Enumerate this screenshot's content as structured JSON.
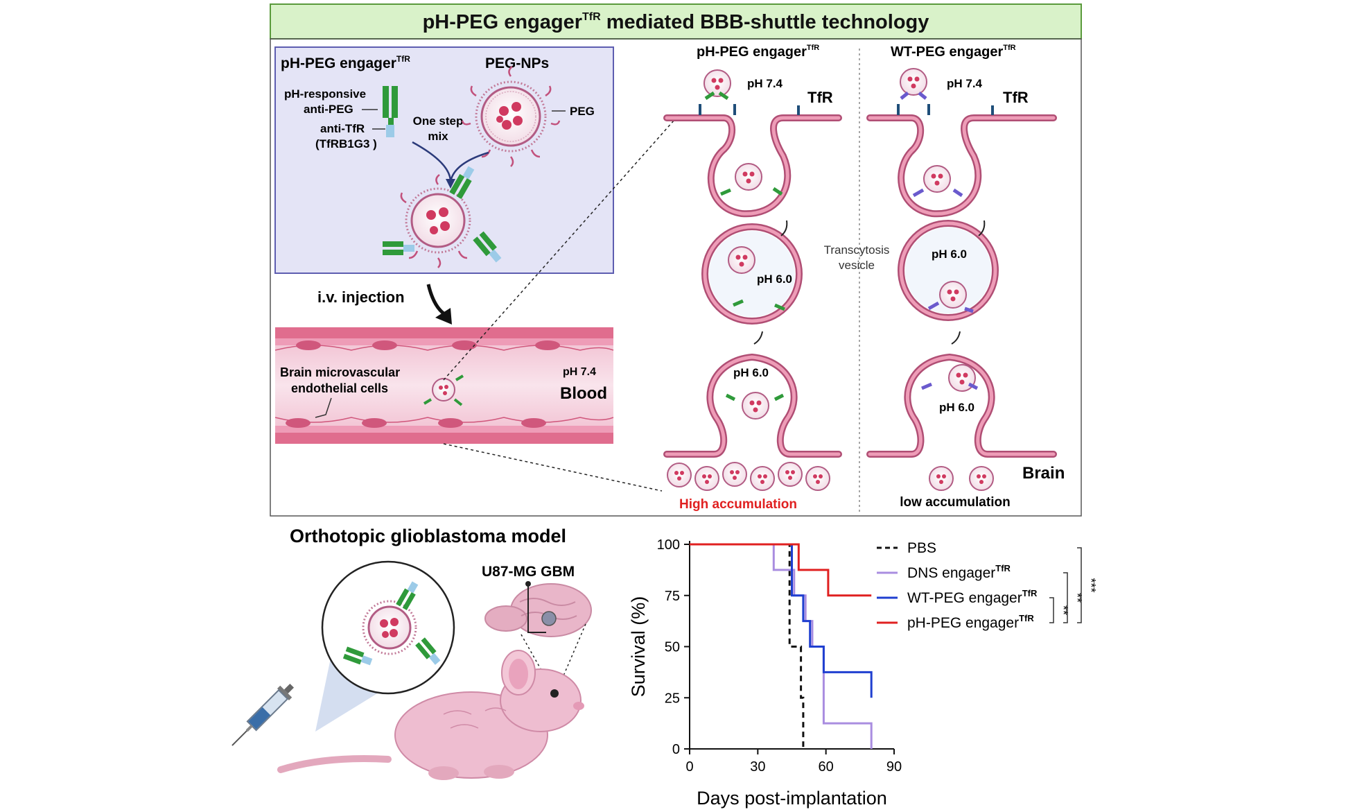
{
  "title": {
    "main": "pH-PEG engager",
    "sup": "TfR",
    "rest": " mediated BBB-shuttle technology"
  },
  "mixing": {
    "engager_label": "pH-PEG engager",
    "engager_sup": "TfR",
    "peg_nps": "PEG-NPs",
    "ph_responsive": "pH-responsive",
    "anti_peg": "anti-PEG",
    "one_step": "One step",
    "mix": "mix",
    "peg": "PEG",
    "anti_tfr": "anti-TfR",
    "tfrb1g3": "(TfRB1G3 )"
  },
  "injection": "i.v. injection",
  "vessel": {
    "cells_line1": "Brain microvascular",
    "cells_line2": "endothelial cells",
    "ph": "pH 7.4",
    "blood": "Blood"
  },
  "transcytosis": {
    "ph_col_title": "pH-PEG engager",
    "ph_col_sup": "TfR",
    "wt_col_title": "WT-PEG engager",
    "wt_col_sup": "TfR",
    "ph74_a": "pH 7.4",
    "ph74_b": "pH 7.4",
    "tfr_a": "TfR",
    "tfr_b": "TfR",
    "ph60_a": "pH 6.0",
    "ph60_b": "pH 6.0",
    "ph60_c": "pH 6.0",
    "ph60_d": "pH 6.0",
    "vesicle_line1": "Transcytosis",
    "vesicle_line2": "vesicle",
    "high": "High accumulation",
    "low": "low accumulation",
    "brain": "Brain"
  },
  "model": {
    "title": "Orthotopic glioblastoma model",
    "gbm": "U87-MG GBM"
  },
  "colors": {
    "title_bg": "#d9f2c9",
    "title_border": "#5a9a3c",
    "membrane": "#d9779a",
    "membrane_dark": "#b04e74",
    "vessel_pink": "#e06d8e",
    "lumen": "#f7dbe6",
    "box_fill": "#e4e4f6",
    "box_border": "#5d5db0",
    "antibody_green": "#2f9a3a",
    "anti_tfr_blue": "#9ccbe8",
    "wt_purple": "#6a5acd",
    "np_red": "#d03a60",
    "high_red": "#e02020"
  },
  "chart_data": {
    "type": "line",
    "step": true,
    "xlabel": "Days post-implantation",
    "ylabel": "Survival (%)",
    "xlim": [
      0,
      90
    ],
    "ylim": [
      0,
      100
    ],
    "xticks": [
      0,
      30,
      60,
      90
    ],
    "yticks": [
      0,
      25,
      50,
      75,
      100
    ],
    "legend_position": "right",
    "series": [
      {
        "name": "PBS",
        "sup": "",
        "color": "#111111",
        "dash": true,
        "x": [
          0,
          44,
          44,
          49,
          49,
          50,
          50
        ],
        "y": [
          100,
          100,
          50,
          50,
          25,
          25,
          0
        ]
      },
      {
        "name": "DNS engager",
        "sup": "TfR",
        "color": "#a98de0",
        "dash": false,
        "x": [
          0,
          37,
          37,
          46,
          46,
          51,
          51,
          54,
          54,
          59,
          59,
          80,
          80
        ],
        "y": [
          100,
          100,
          87.5,
          87.5,
          75,
          75,
          62.5,
          62.5,
          50,
          50,
          12.5,
          12.5,
          0
        ]
      },
      {
        "name": "WT-PEG engager",
        "sup": "TfR",
        "color": "#1f3fd0",
        "dash": false,
        "x": [
          0,
          45,
          45,
          50,
          50,
          53,
          53,
          59,
          59,
          80,
          80
        ],
        "y": [
          100,
          100,
          75,
          75,
          62.5,
          62.5,
          50,
          50,
          37.5,
          37.5,
          25
        ]
      },
      {
        "name": "pH-PEG engager",
        "sup": "TfR",
        "color": "#e02020",
        "dash": false,
        "x": [
          0,
          48,
          48,
          52,
          52,
          61,
          61,
          80
        ],
        "y": [
          100,
          100,
          87.5,
          87.5,
          87.5,
          87.5,
          75,
          75
        ]
      }
    ],
    "significance": [
      "**",
      "**",
      "***"
    ]
  }
}
